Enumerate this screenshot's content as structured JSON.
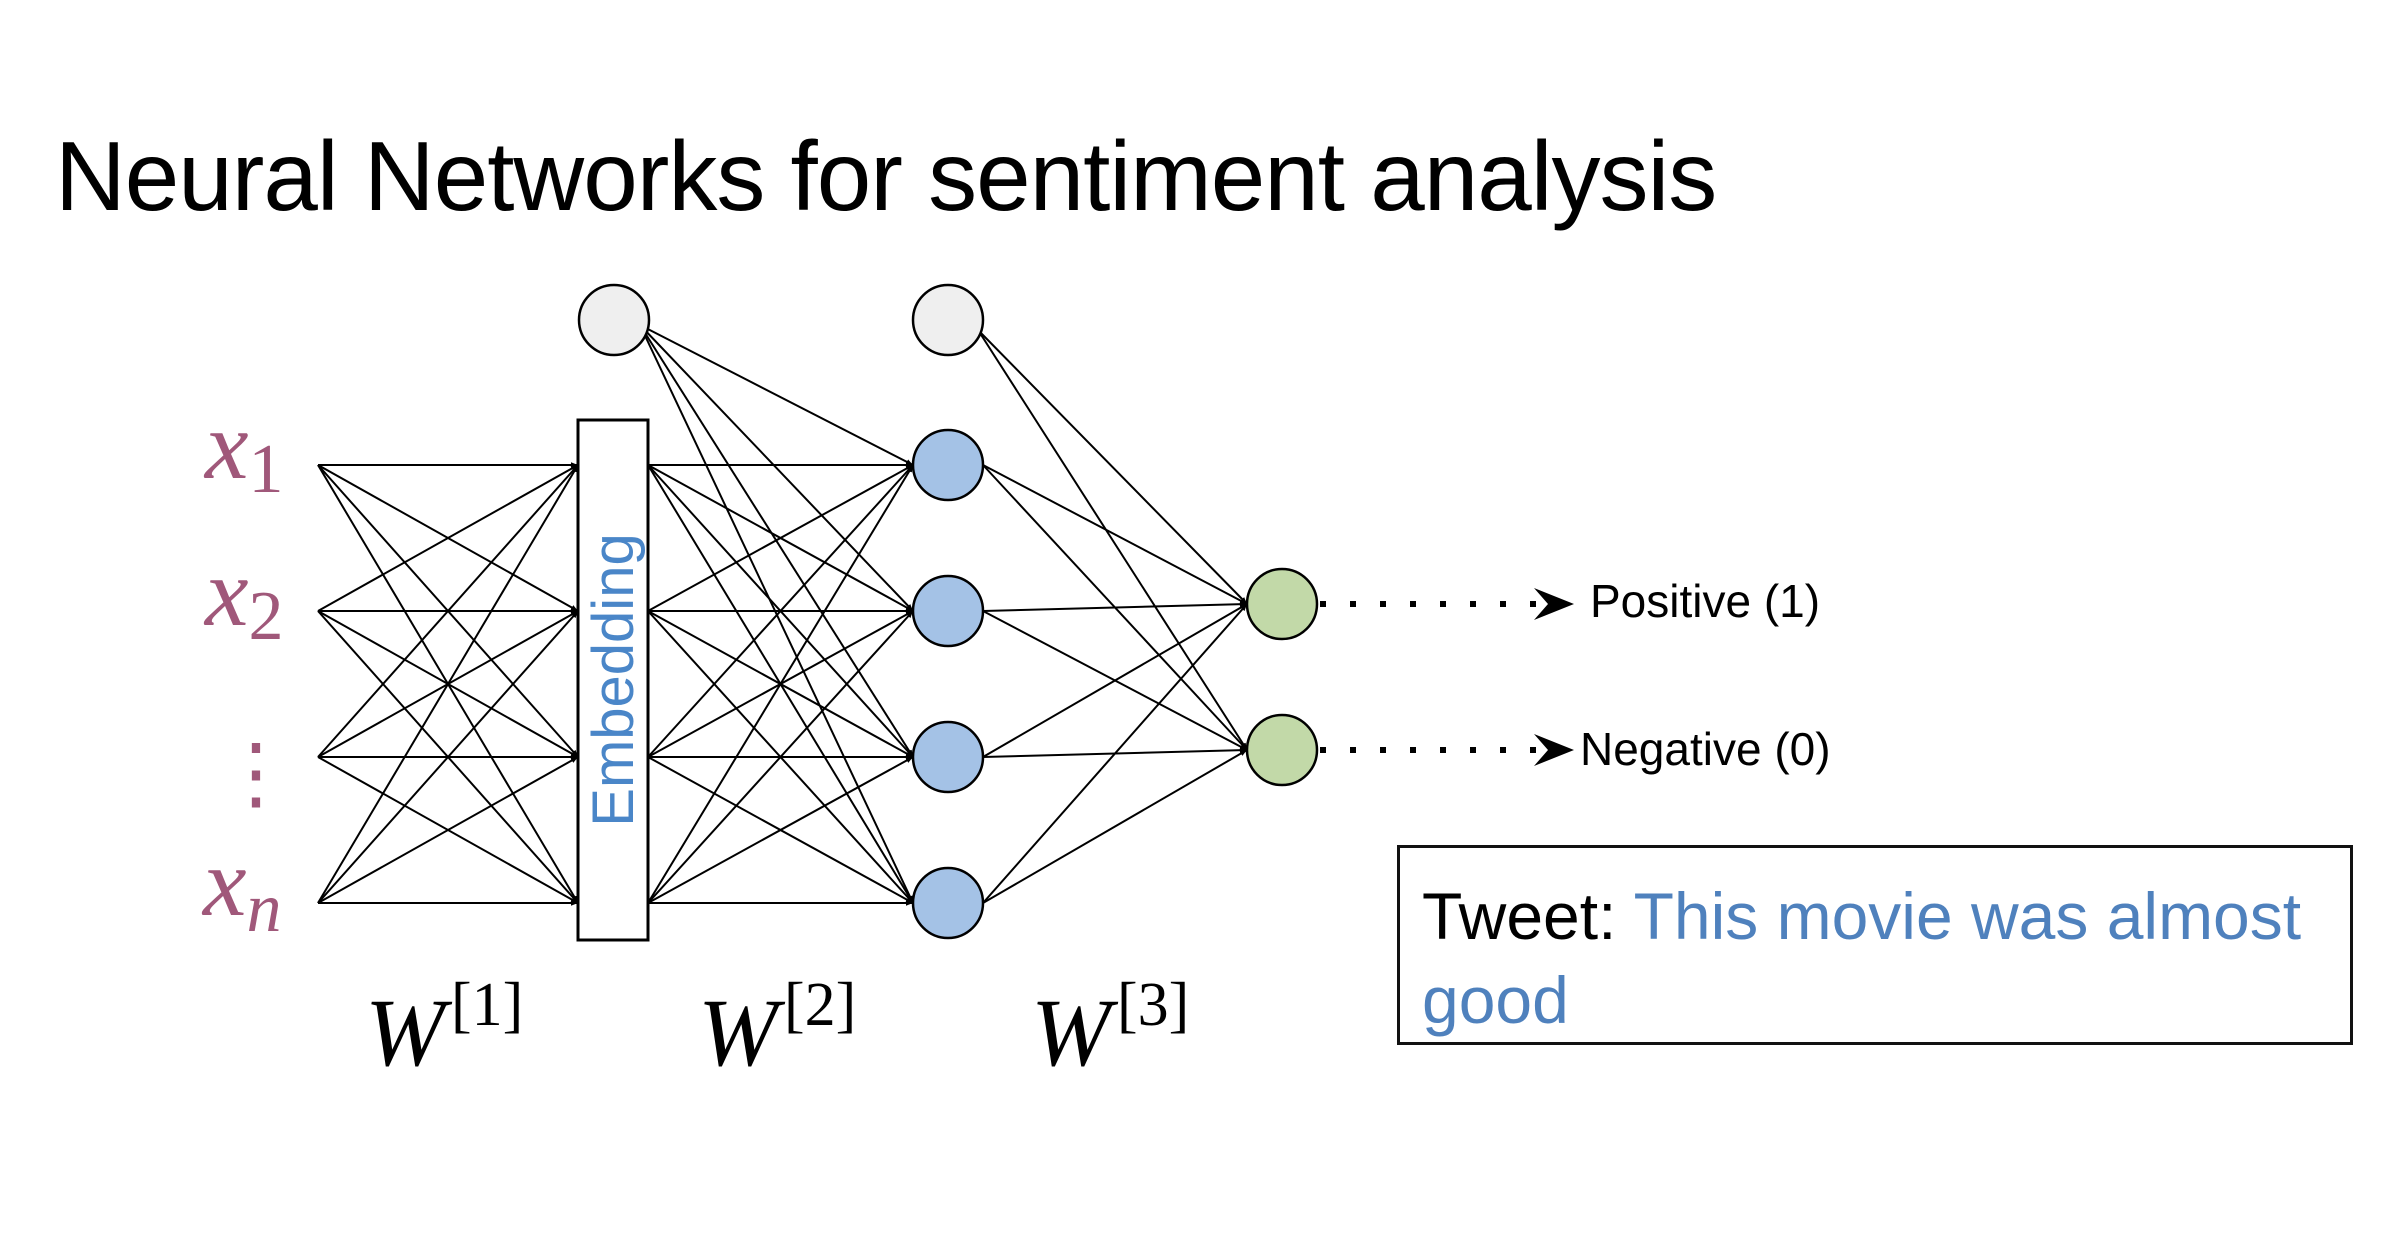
{
  "title": "Neural Networks for sentiment analysis",
  "colors": {
    "input_label": "#a0587a",
    "embedding_text": "#4a86c8",
    "bias_node": "#efefef",
    "hidden_node": "#a4c2e6",
    "output_node": "#c2d9a8",
    "tweet_text": "#4f81bd"
  },
  "inputs": {
    "x1": {
      "base": "x",
      "sub": "1"
    },
    "x2": {
      "base": "x",
      "sub": "2"
    },
    "ellipsis": "⋮",
    "xn": {
      "base": "x",
      "sub": "n"
    }
  },
  "embedding_label": "Embedding",
  "weights": [
    {
      "base": "W",
      "sup": "[1]"
    },
    {
      "base": "W",
      "sup": "[2]"
    },
    {
      "base": "W",
      "sup": "[3]"
    }
  ],
  "outputs": {
    "positive": "Positive (1)",
    "negative": "Negative (0)"
  },
  "tweet": {
    "label": "Tweet:",
    "text": "This movie was almost good"
  }
}
